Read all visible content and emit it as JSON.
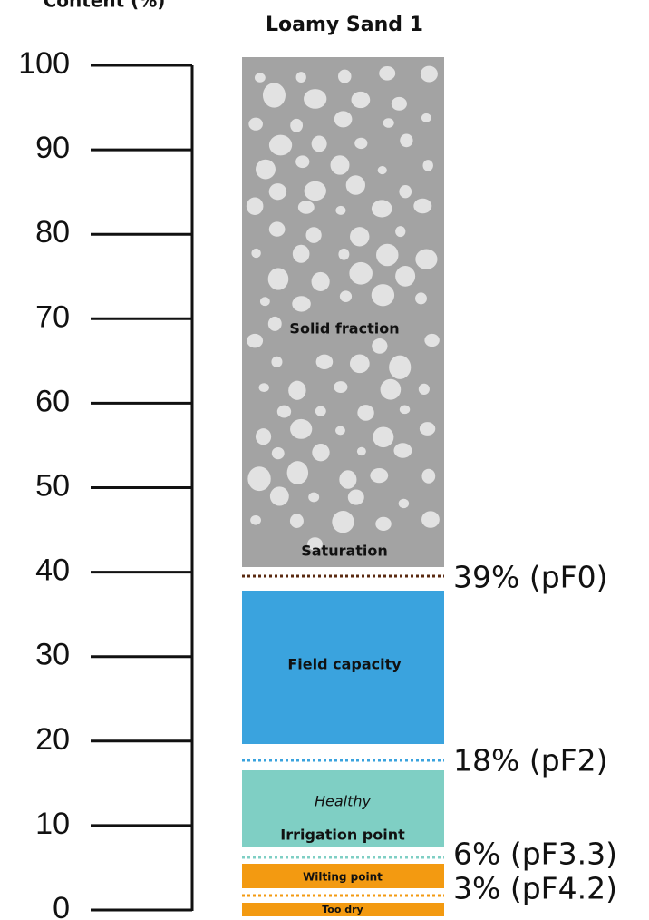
{
  "header": {
    "axis_title": "Content (%)",
    "column_title": "Loamy Sand 1"
  },
  "axis": {
    "ticks": [
      100,
      90,
      80,
      70,
      60,
      50,
      40,
      30,
      20,
      10,
      0
    ]
  },
  "zones": {
    "solid": "Solid fraction",
    "saturation": "Saturation",
    "field_capacity": "Field capacity",
    "healthy": "Healthy",
    "irrigation": "Irrigation point",
    "wilting": "Wilting point",
    "too_dry": "Too dry"
  },
  "levels": [
    "39% (pF0)",
    "18% (pF2)",
    "6% (pF3.3)",
    "3% (pF4.2)"
  ]
}
